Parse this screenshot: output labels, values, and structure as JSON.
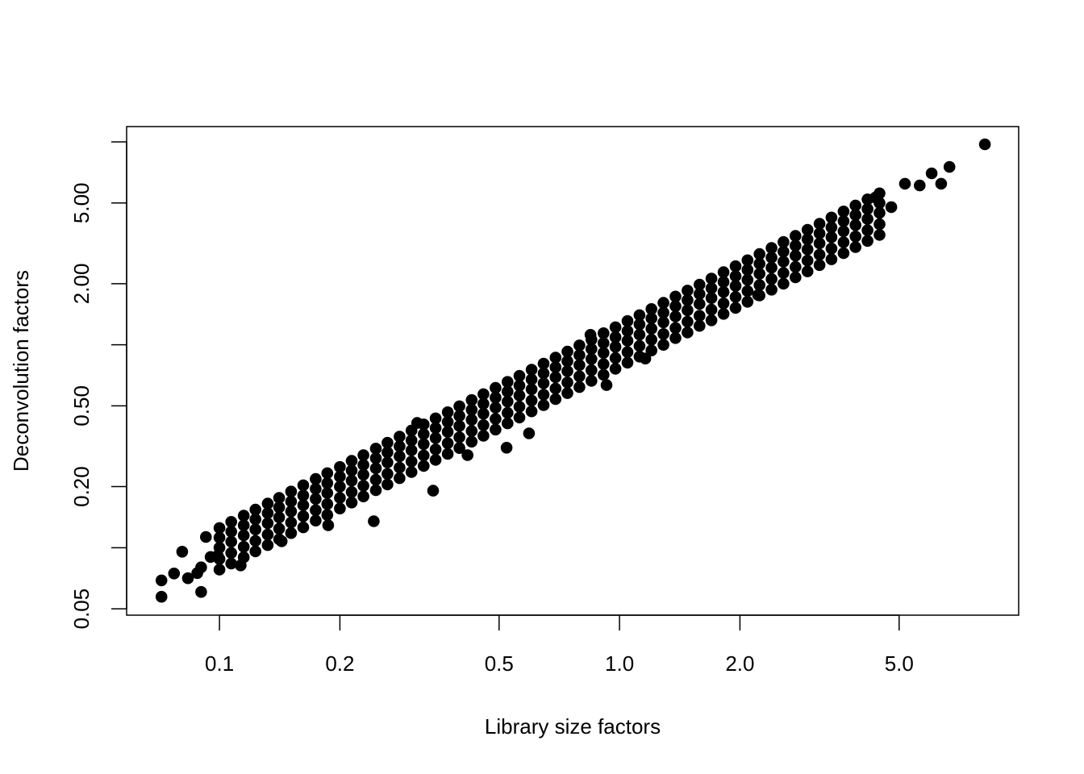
{
  "chart_data": {
    "type": "scatter",
    "title": "",
    "xlabel": "Library size factors",
    "ylabel": "Deconvolution factors",
    "xscale": "log",
    "yscale": "log",
    "xlim": [
      0.0586,
      9.95
    ],
    "ylim": [
      0.0465,
      11.9
    ],
    "grid": false,
    "point_color": "#000000",
    "x_ticks": [
      {
        "value": 0.1,
        "label": "0.1"
      },
      {
        "value": 0.2,
        "label": "0.2"
      },
      {
        "value": 0.5,
        "label": "0.5"
      },
      {
        "value": 1.0,
        "label": "1.0"
      },
      {
        "value": 2.0,
        "label": "2.0"
      },
      {
        "value": 5.0,
        "label": "5.0"
      }
    ],
    "y_ticks": [
      {
        "value": 0.05,
        "label": "0.05"
      },
      {
        "value": 0.1,
        "label": ""
      },
      {
        "value": 0.2,
        "label": "0.20"
      },
      {
        "value": 0.5,
        "label": "0.50"
      },
      {
        "value": 1.0,
        "label": ""
      },
      {
        "value": 2.0,
        "label": "2.00"
      },
      {
        "value": 5.0,
        "label": "5.00"
      },
      {
        "value": 10.0,
        "label": ""
      }
    ],
    "points": [
      [
        0.1,
        0.078
      ],
      [
        0.1,
        0.088
      ],
      [
        0.1,
        0.1
      ],
      [
        0.1,
        0.112
      ],
      [
        0.1,
        0.125
      ],
      [
        0.107,
        0.0835
      ],
      [
        0.107,
        0.0942
      ],
      [
        0.107,
        0.107
      ],
      [
        0.107,
        0.12
      ],
      [
        0.107,
        0.134
      ],
      [
        0.115,
        0.0897
      ],
      [
        0.115,
        0.101
      ],
      [
        0.115,
        0.115
      ],
      [
        0.115,
        0.129
      ],
      [
        0.115,
        0.144
      ],
      [
        0.123,
        0.0959
      ],
      [
        0.123,
        0.108
      ],
      [
        0.123,
        0.123
      ],
      [
        0.123,
        0.138
      ],
      [
        0.123,
        0.154
      ],
      [
        0.132,
        0.103
      ],
      [
        0.132,
        0.116
      ],
      [
        0.132,
        0.132
      ],
      [
        0.132,
        0.148
      ],
      [
        0.132,
        0.165
      ],
      [
        0.141,
        0.11
      ],
      [
        0.141,
        0.124
      ],
      [
        0.141,
        0.141
      ],
      [
        0.141,
        0.158
      ],
      [
        0.141,
        0.176
      ],
      [
        0.151,
        0.118
      ],
      [
        0.151,
        0.133
      ],
      [
        0.151,
        0.151
      ],
      [
        0.151,
        0.169
      ],
      [
        0.151,
        0.189
      ],
      [
        0.162,
        0.126
      ],
      [
        0.162,
        0.143
      ],
      [
        0.162,
        0.162
      ],
      [
        0.162,
        0.181
      ],
      [
        0.162,
        0.203
      ],
      [
        0.174,
        0.136
      ],
      [
        0.174,
        0.153
      ],
      [
        0.174,
        0.174
      ],
      [
        0.174,
        0.195
      ],
      [
        0.174,
        0.218
      ],
      [
        0.186,
        0.145
      ],
      [
        0.186,
        0.164
      ],
      [
        0.186,
        0.186
      ],
      [
        0.186,
        0.208
      ],
      [
        0.186,
        0.233
      ],
      [
        0.2,
        0.156
      ],
      [
        0.2,
        0.176
      ],
      [
        0.2,
        0.2
      ],
      [
        0.2,
        0.224
      ],
      [
        0.2,
        0.25
      ],
      [
        0.214,
        0.167
      ],
      [
        0.214,
        0.188
      ],
      [
        0.214,
        0.214
      ],
      [
        0.214,
        0.24
      ],
      [
        0.214,
        0.268
      ],
      [
        0.229,
        0.179
      ],
      [
        0.229,
        0.202
      ],
      [
        0.229,
        0.229
      ],
      [
        0.229,
        0.256
      ],
      [
        0.229,
        0.286
      ],
      [
        0.246,
        0.192
      ],
      [
        0.246,
        0.216
      ],
      [
        0.246,
        0.246
      ],
      [
        0.246,
        0.276
      ],
      [
        0.246,
        0.308
      ],
      [
        0.263,
        0.205
      ],
      [
        0.263,
        0.231
      ],
      [
        0.263,
        0.263
      ],
      [
        0.263,
        0.295
      ],
      [
        0.263,
        0.329
      ],
      [
        0.282,
        0.22
      ],
      [
        0.282,
        0.248
      ],
      [
        0.282,
        0.282
      ],
      [
        0.282,
        0.316
      ],
      [
        0.282,
        0.353
      ],
      [
        0.302,
        0.236
      ],
      [
        0.302,
        0.266
      ],
      [
        0.302,
        0.302
      ],
      [
        0.302,
        0.338
      ],
      [
        0.302,
        0.378
      ],
      [
        0.324,
        0.253
      ],
      [
        0.324,
        0.285
      ],
      [
        0.324,
        0.324
      ],
      [
        0.324,
        0.363
      ],
      [
        0.324,
        0.405
      ],
      [
        0.347,
        0.271
      ],
      [
        0.347,
        0.305
      ],
      [
        0.347,
        0.347
      ],
      [
        0.347,
        0.389
      ],
      [
        0.347,
        0.434
      ],
      [
        0.372,
        0.29
      ],
      [
        0.372,
        0.327
      ],
      [
        0.372,
        0.372
      ],
      [
        0.372,
        0.417
      ],
      [
        0.372,
        0.465
      ],
      [
        0.398,
        0.31
      ],
      [
        0.398,
        0.35
      ],
      [
        0.398,
        0.398
      ],
      [
        0.398,
        0.446
      ],
      [
        0.398,
        0.498
      ],
      [
        0.427,
        0.333
      ],
      [
        0.427,
        0.376
      ],
      [
        0.427,
        0.427
      ],
      [
        0.427,
        0.478
      ],
      [
        0.427,
        0.534
      ],
      [
        0.457,
        0.356
      ],
      [
        0.457,
        0.402
      ],
      [
        0.457,
        0.457
      ],
      [
        0.457,
        0.512
      ],
      [
        0.457,
        0.571
      ],
      [
        0.49,
        0.382
      ],
      [
        0.49,
        0.431
      ],
      [
        0.49,
        0.49
      ],
      [
        0.49,
        0.549
      ],
      [
        0.49,
        0.613
      ],
      [
        0.525,
        0.41
      ],
      [
        0.525,
        0.462
      ],
      [
        0.525,
        0.525
      ],
      [
        0.525,
        0.588
      ],
      [
        0.525,
        0.656
      ],
      [
        0.562,
        0.438
      ],
      [
        0.562,
        0.495
      ],
      [
        0.562,
        0.562
      ],
      [
        0.562,
        0.629
      ],
      [
        0.562,
        0.703
      ],
      [
        0.603,
        0.47
      ],
      [
        0.603,
        0.531
      ],
      [
        0.603,
        0.603
      ],
      [
        0.603,
        0.675
      ],
      [
        0.603,
        0.754
      ],
      [
        0.646,
        0.504
      ],
      [
        0.646,
        0.568
      ],
      [
        0.646,
        0.646
      ],
      [
        0.646,
        0.724
      ],
      [
        0.646,
        0.808
      ],
      [
        0.692,
        0.54
      ],
      [
        0.692,
        0.609
      ],
      [
        0.692,
        0.692
      ],
      [
        0.692,
        0.775
      ],
      [
        0.692,
        0.865
      ],
      [
        0.741,
        0.578
      ],
      [
        0.741,
        0.652
      ],
      [
        0.741,
        0.741
      ],
      [
        0.741,
        0.83
      ],
      [
        0.741,
        0.926
      ],
      [
        0.794,
        0.619
      ],
      [
        0.794,
        0.699
      ],
      [
        0.794,
        0.794
      ],
      [
        0.794,
        0.889
      ],
      [
        0.794,
        0.993
      ],
      [
        0.851,
        0.664
      ],
      [
        0.851,
        0.749
      ],
      [
        0.851,
        0.851
      ],
      [
        0.851,
        0.953
      ],
      [
        0.851,
        1.06
      ],
      [
        0.912,
        0.711
      ],
      [
        0.912,
        0.803
      ],
      [
        0.912,
        0.912
      ],
      [
        0.912,
        1.02
      ],
      [
        0.912,
        1.14
      ],
      [
        0.977,
        0.762
      ],
      [
        0.977,
        0.86
      ],
      [
        0.977,
        0.977
      ],
      [
        0.977,
        1.09
      ],
      [
        0.977,
        1.22
      ],
      [
        1.047,
        0.817
      ],
      [
        1.047,
        0.921
      ],
      [
        1.047,
        1.047
      ],
      [
        1.047,
        1.17
      ],
      [
        1.047,
        1.31
      ],
      [
        1.122,
        0.875
      ],
      [
        1.122,
        0.987
      ],
      [
        1.122,
        1.122
      ],
      [
        1.122,
        1.26
      ],
      [
        1.122,
        1.4
      ],
      [
        1.202,
        0.938
      ],
      [
        1.202,
        1.06
      ],
      [
        1.202,
        1.2
      ],
      [
        1.202,
        1.35
      ],
      [
        1.202,
        1.5
      ],
      [
        1.288,
        1.0
      ],
      [
        1.288,
        1.13
      ],
      [
        1.288,
        1.29
      ],
      [
        1.288,
        1.44
      ],
      [
        1.288,
        1.61
      ],
      [
        1.38,
        1.08
      ],
      [
        1.38,
        1.21
      ],
      [
        1.38,
        1.38
      ],
      [
        1.38,
        1.55
      ],
      [
        1.38,
        1.73
      ],
      [
        1.479,
        1.15
      ],
      [
        1.479,
        1.3
      ],
      [
        1.479,
        1.48
      ],
      [
        1.479,
        1.66
      ],
      [
        1.479,
        1.85
      ],
      [
        1.585,
        1.24
      ],
      [
        1.585,
        1.39
      ],
      [
        1.585,
        1.59
      ],
      [
        1.585,
        1.78
      ],
      [
        1.585,
        1.98
      ],
      [
        1.698,
        1.32
      ],
      [
        1.698,
        1.49
      ],
      [
        1.698,
        1.7
      ],
      [
        1.698,
        1.9
      ],
      [
        1.698,
        2.12
      ],
      [
        1.82,
        1.42
      ],
      [
        1.82,
        1.6
      ],
      [
        1.82,
        1.82
      ],
      [
        1.82,
        2.04
      ],
      [
        1.82,
        2.28
      ],
      [
        1.95,
        1.52
      ],
      [
        1.95,
        1.72
      ],
      [
        1.95,
        1.95
      ],
      [
        1.95,
        2.18
      ],
      [
        1.95,
        2.44
      ],
      [
        2.089,
        1.63
      ],
      [
        2.089,
        1.84
      ],
      [
        2.089,
        2.09
      ],
      [
        2.089,
        2.34
      ],
      [
        2.089,
        2.61
      ],
      [
        2.239,
        1.75
      ],
      [
        2.239,
        1.97
      ],
      [
        2.239,
        2.24
      ],
      [
        2.239,
        2.51
      ],
      [
        2.239,
        2.8
      ],
      [
        2.399,
        1.87
      ],
      [
        2.399,
        2.11
      ],
      [
        2.399,
        2.4
      ],
      [
        2.399,
        2.69
      ],
      [
        2.399,
        3.0
      ],
      [
        2.57,
        2.0
      ],
      [
        2.57,
        2.26
      ],
      [
        2.57,
        2.57
      ],
      [
        2.57,
        2.88
      ],
      [
        2.57,
        3.21
      ],
      [
        2.754,
        2.15
      ],
      [
        2.754,
        2.42
      ],
      [
        2.754,
        2.75
      ],
      [
        2.754,
        3.08
      ],
      [
        2.754,
        3.44
      ],
      [
        2.951,
        2.3
      ],
      [
        2.951,
        2.6
      ],
      [
        2.951,
        2.95
      ],
      [
        2.951,
        3.31
      ],
      [
        2.951,
        3.69
      ],
      [
        3.162,
        2.47
      ],
      [
        3.162,
        2.78
      ],
      [
        3.162,
        3.16
      ],
      [
        3.162,
        3.54
      ],
      [
        3.162,
        3.95
      ],
      [
        3.388,
        2.64
      ],
      [
        3.388,
        2.98
      ],
      [
        3.388,
        3.39
      ],
      [
        3.388,
        3.79
      ],
      [
        3.388,
        4.24
      ],
      [
        3.631,
        2.83
      ],
      [
        3.631,
        3.2
      ],
      [
        3.631,
        3.63
      ],
      [
        3.631,
        4.07
      ],
      [
        3.631,
        4.54
      ],
      [
        3.89,
        3.03
      ],
      [
        3.89,
        3.42
      ],
      [
        3.89,
        3.89
      ],
      [
        3.89,
        4.36
      ],
      [
        3.89,
        4.86
      ],
      [
        4.169,
        3.25
      ],
      [
        4.169,
        3.67
      ],
      [
        4.169,
        4.17
      ],
      [
        4.169,
        4.67
      ],
      [
        4.169,
        5.21
      ],
      [
        4.467,
        3.48
      ],
      [
        4.467,
        3.93
      ],
      [
        4.467,
        4.47
      ],
      [
        4.467,
        5.0
      ],
      [
        4.467,
        5.58
      ],
      [
        8.19,
        9.73
      ],
      [
        6.68,
        7.53
      ],
      [
        6.03,
        7.0
      ],
      [
        5.17,
        6.22
      ],
      [
        6.37,
        6.22
      ],
      [
        4.78,
        4.77
      ],
      [
        5.63,
        6.1
      ],
      [
        4.36,
        5.32
      ],
      [
        0.846,
        1.12
      ],
      [
        0.312,
        0.412
      ],
      [
        0.342,
        0.191
      ],
      [
        0.243,
        0.135
      ],
      [
        0.594,
        0.366
      ],
      [
        2.22,
        1.76
      ],
      [
        0.0925,
        0.113
      ],
      [
        0.0807,
        0.0955
      ],
      [
        0.0716,
        0.069
      ],
      [
        0.0716,
        0.0573
      ],
      [
        0.09,
        0.0605
      ],
      [
        0.077,
        0.0746
      ],
      [
        0.0834,
        0.0707
      ],
      [
        0.113,
        0.0818
      ],
      [
        0.099,
        0.0913
      ],
      [
        0.143,
        0.1076
      ],
      [
        0.187,
        0.129
      ],
      [
        1.16,
        0.856
      ],
      [
        0.928,
        0.633
      ],
      [
        0.522,
        0.311
      ],
      [
        0.417,
        0.286
      ],
      [
        0.09,
        0.08
      ],
      [
        0.095,
        0.09
      ],
      [
        0.088,
        0.075
      ]
    ]
  }
}
